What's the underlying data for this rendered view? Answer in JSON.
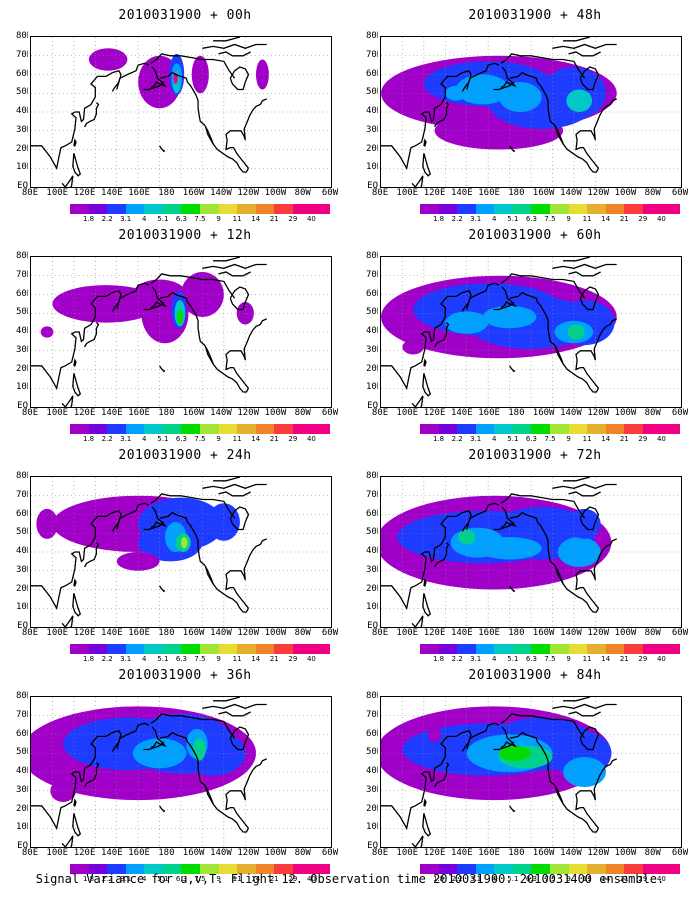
{
  "panels": [
    {
      "title": "2010031900 + 00h",
      "spread": 0
    },
    {
      "title": "2010031900 + 48h",
      "spread": 4
    },
    {
      "title": "2010031900 + 12h",
      "spread": 1
    },
    {
      "title": "2010031900 + 60h",
      "spread": 5
    },
    {
      "title": "2010031900 + 24h",
      "spread": 2
    },
    {
      "title": "2010031900 + 72h",
      "spread": 6
    },
    {
      "title": "2010031900 + 36h",
      "spread": 3
    },
    {
      "title": "2010031900 + 84h",
      "spread": 7
    }
  ],
  "lat_labels": [
    "80N",
    "70N",
    "60N",
    "50N",
    "40N",
    "30N",
    "20N",
    "10N",
    "EQ"
  ],
  "lon_labels": [
    "80E",
    "100E",
    "120E",
    "140E",
    "160E",
    "180",
    "160W",
    "140W",
    "120W",
    "100W",
    "80W",
    "60W"
  ],
  "colorbar": {
    "levels": [
      "1.8",
      "2.2",
      "3.1",
      "4",
      "5.1",
      "6.3",
      "7.5",
      "9",
      "11",
      "14",
      "21",
      "29",
      "40"
    ],
    "colors": [
      "#a000c8",
      "#7800dc",
      "#1e3cff",
      "#00a0ff",
      "#00c8c8",
      "#00d28c",
      "#00dc00",
      "#a0e632",
      "#e6dc32",
      "#e6af2d",
      "#f08228",
      "#fa3c3c",
      "#f00082"
    ]
  },
  "caption": "Signal Variance for u,v,T. Flight 12. Observation time 2010031900. 2010031400 ensemble."
}
